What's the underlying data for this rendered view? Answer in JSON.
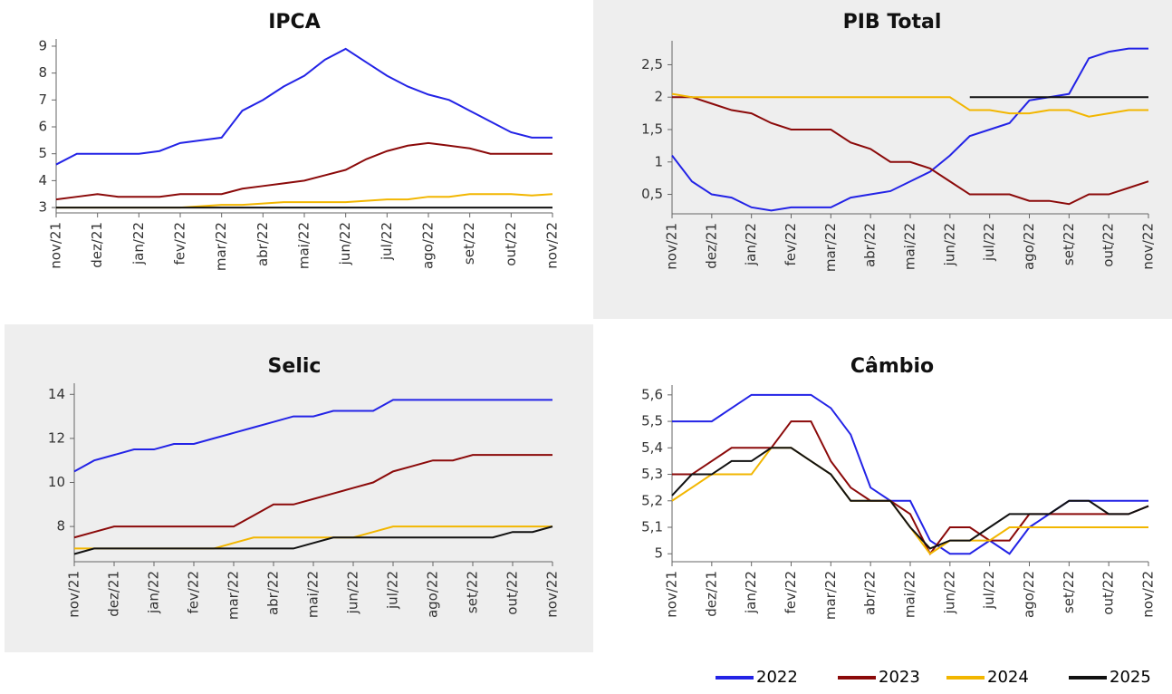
{
  "chart_data": [
    {
      "type": "line",
      "title": "IPCA",
      "x": [
        0,
        0.5,
        1,
        1.5,
        2,
        2.5,
        3,
        3.5,
        4,
        4.5,
        5,
        5.5,
        6,
        6.5,
        7,
        7.5,
        8,
        8.5,
        9,
        9.5,
        10,
        10.5,
        11,
        11.5,
        12
      ],
      "xlim": [
        0,
        12
      ],
      "xticks": [
        {
          "value": 0,
          "label": "nov/21"
        },
        {
          "value": 1,
          "label": "dez/21"
        },
        {
          "value": 2,
          "label": "jan/22"
        },
        {
          "value": 3,
          "label": "fev/22"
        },
        {
          "value": 4,
          "label": "mar/22"
        },
        {
          "value": 5,
          "label": "abr/22"
        },
        {
          "value": 6,
          "label": "mai/22"
        },
        {
          "value": 7,
          "label": "jun/22"
        },
        {
          "value": 8,
          "label": "jul/22"
        },
        {
          "value": 9,
          "label": "ago/22"
        },
        {
          "value": 10,
          "label": "set/22"
        },
        {
          "value": 11,
          "label": "out/22"
        },
        {
          "value": 12,
          "label": "nov/22"
        }
      ],
      "ylim": [
        2.8,
        9.1
      ],
      "yticks": [
        3,
        4,
        5,
        6,
        7,
        8,
        9
      ],
      "series": [
        {
          "name": "2022",
          "color": "#2323e6",
          "values": [
            4.6,
            5.0,
            5.0,
            5.0,
            5.0,
            5.1,
            5.4,
            5.5,
            5.6,
            6.6,
            7.0,
            7.5,
            7.9,
            8.5,
            8.9,
            8.4,
            7.9,
            7.5,
            7.2,
            7.0,
            6.6,
            6.2,
            5.8,
            5.6,
            5.6
          ]
        },
        {
          "name": "2023",
          "color": "#8b0a0a",
          "values": [
            3.3,
            3.4,
            3.5,
            3.4,
            3.4,
            3.4,
            3.5,
            3.5,
            3.5,
            3.7,
            3.8,
            3.9,
            4.0,
            4.2,
            4.4,
            4.8,
            5.1,
            5.3,
            5.4,
            5.3,
            5.2,
            5.0,
            5.0,
            5.0,
            5.0
          ]
        },
        {
          "name": "2024",
          "color": "#f2b600",
          "values": [
            3.0,
            3.0,
            3.0,
            3.0,
            3.0,
            3.0,
            3.0,
            3.05,
            3.1,
            3.1,
            3.15,
            3.2,
            3.2,
            3.2,
            3.2,
            3.25,
            3.3,
            3.3,
            3.4,
            3.4,
            3.5,
            3.5,
            3.5,
            3.45,
            3.5
          ]
        },
        {
          "name": "2025",
          "color": "#111111",
          "values": [
            3.0,
            3.0,
            3.0,
            3.0,
            3.0,
            3.0,
            3.0,
            3.0,
            3.0,
            3.0,
            3.0,
            3.0,
            3.0,
            3.0,
            3.0,
            3.0,
            3.0,
            3.0,
            3.0,
            3.0,
            3.0,
            3.0,
            3.0,
            3.0,
            3.0
          ]
        }
      ]
    },
    {
      "type": "line",
      "title": "PIB Total",
      "x": [
        0,
        0.5,
        1,
        1.5,
        2,
        2.5,
        3,
        3.5,
        4,
        4.5,
        5,
        5.5,
        6,
        6.5,
        7,
        7.5,
        8,
        8.5,
        9,
        9.5,
        10,
        10.5,
        11,
        11.5,
        12
      ],
      "xlim": [
        0,
        12
      ],
      "xticks": [
        {
          "value": 0,
          "label": "nov/21"
        },
        {
          "value": 1,
          "label": "dez/21"
        },
        {
          "value": 2,
          "label": "jan/22"
        },
        {
          "value": 3,
          "label": "fev/22"
        },
        {
          "value": 4,
          "label": "mar/22"
        },
        {
          "value": 5,
          "label": "abr/22"
        },
        {
          "value": 6,
          "label": "mai/22"
        },
        {
          "value": 7,
          "label": "jun/22"
        },
        {
          "value": 8,
          "label": "jul/22"
        },
        {
          "value": 9,
          "label": "ago/22"
        },
        {
          "value": 10,
          "label": "set/22"
        },
        {
          "value": 11,
          "label": "out/22"
        },
        {
          "value": 12,
          "label": "nov/22"
        }
      ],
      "ylim": [
        0.2,
        2.8
      ],
      "yticks": [
        {
          "value": 0.5,
          "label": "0,5"
        },
        1,
        {
          "value": 1.5,
          "label": "1,5"
        },
        2,
        {
          "value": 2.5,
          "label": "2,5"
        }
      ],
      "series": [
        {
          "name": "2022",
          "color": "#2323e6",
          "values": [
            1.1,
            0.7,
            0.5,
            0.45,
            0.3,
            0.25,
            0.3,
            0.3,
            0.3,
            0.45,
            0.5,
            0.55,
            0.7,
            0.85,
            1.1,
            1.4,
            1.5,
            1.6,
            1.95,
            2.0,
            2.05,
            2.6,
            2.7,
            2.75,
            2.75
          ]
        },
        {
          "name": "2023",
          "color": "#8b0a0a",
          "values": [
            2.0,
            2.0,
            1.9,
            1.8,
            1.75,
            1.6,
            1.5,
            1.5,
            1.5,
            1.3,
            1.2,
            1.0,
            1.0,
            0.9,
            0.7,
            0.5,
            0.5,
            0.5,
            0.4,
            0.4,
            0.35,
            0.5,
            0.5,
            0.6,
            0.7
          ]
        },
        {
          "name": "2024",
          "color": "#f2b600",
          "values": [
            2.05,
            2.0,
            2.0,
            2.0,
            2.0,
            2.0,
            2.0,
            2.0,
            2.0,
            2.0,
            2.0,
            2.0,
            2.0,
            2.0,
            2.0,
            1.8,
            1.8,
            1.75,
            1.75,
            1.8,
            1.8,
            1.7,
            1.75,
            1.8,
            1.8
          ]
        },
        {
          "name": "2025",
          "color": "#111111",
          "values": [
            null,
            null,
            null,
            null,
            null,
            null,
            null,
            null,
            null,
            null,
            null,
            null,
            null,
            null,
            null,
            2.0,
            2.0,
            2.0,
            2.0,
            2.0,
            2.0,
            2.0,
            2.0,
            2.0,
            2.0
          ]
        }
      ]
    },
    {
      "type": "line",
      "title": "Selic",
      "x": [
        0,
        0.5,
        1,
        1.5,
        2,
        2.5,
        3,
        3.5,
        4,
        4.5,
        5,
        5.5,
        6,
        6.5,
        7,
        7.5,
        8,
        8.5,
        9,
        9.5,
        10,
        10.5,
        11,
        11.5,
        12
      ],
      "xlim": [
        0,
        12
      ],
      "xticks": [
        {
          "value": 0,
          "label": "nov/21"
        },
        {
          "value": 1,
          "label": "dez/21"
        },
        {
          "value": 2,
          "label": "jan/22"
        },
        {
          "value": 3,
          "label": "fev/22"
        },
        {
          "value": 4,
          "label": "mar/22"
        },
        {
          "value": 5,
          "label": "abr/22"
        },
        {
          "value": 6,
          "label": "mai/22"
        },
        {
          "value": 7,
          "label": "jun/22"
        },
        {
          "value": 8,
          "label": "jul/22"
        },
        {
          "value": 9,
          "label": "ago/22"
        },
        {
          "value": 10,
          "label": "set/22"
        },
        {
          "value": 11,
          "label": "out/22"
        },
        {
          "value": 12,
          "label": "nov/22"
        }
      ],
      "ylim": [
        6.4,
        14.3
      ],
      "yticks": [
        8,
        10,
        12,
        14
      ],
      "series": [
        {
          "name": "2022",
          "color": "#2323e6",
          "values": [
            10.5,
            11.0,
            11.25,
            11.5,
            11.5,
            11.75,
            11.75,
            12.0,
            12.25,
            12.5,
            12.75,
            13.0,
            13.0,
            13.25,
            13.25,
            13.25,
            13.75,
            13.75,
            13.75,
            13.75,
            13.75,
            13.75,
            13.75,
            13.75,
            13.75
          ]
        },
        {
          "name": "2023",
          "color": "#8b0a0a",
          "values": [
            7.5,
            7.75,
            8.0,
            8.0,
            8.0,
            8.0,
            8.0,
            8.0,
            8.0,
            8.5,
            9.0,
            9.0,
            9.25,
            9.5,
            9.75,
            10.0,
            10.5,
            10.75,
            11.0,
            11.0,
            11.25,
            11.25,
            11.25,
            11.25,
            11.25
          ]
        },
        {
          "name": "2024",
          "color": "#f2b600",
          "values": [
            7.0,
            7.0,
            7.0,
            7.0,
            7.0,
            7.0,
            7.0,
            7.0,
            7.25,
            7.5,
            7.5,
            7.5,
            7.5,
            7.5,
            7.5,
            7.75,
            8.0,
            8.0,
            8.0,
            8.0,
            8.0,
            8.0,
            8.0,
            8.0,
            8.0
          ]
        },
        {
          "name": "2025",
          "color": "#111111",
          "values": [
            6.75,
            7.0,
            7.0,
            7.0,
            7.0,
            7.0,
            7.0,
            7.0,
            7.0,
            7.0,
            7.0,
            7.0,
            7.25,
            7.5,
            7.5,
            7.5,
            7.5,
            7.5,
            7.5,
            7.5,
            7.5,
            7.5,
            7.75,
            7.75,
            8.0
          ]
        }
      ]
    },
    {
      "type": "line",
      "title": "Câmbio",
      "x": [
        0,
        0.5,
        1,
        1.5,
        2,
        2.5,
        3,
        3.5,
        4,
        4.5,
        5,
        5.5,
        6,
        6.5,
        7,
        7.5,
        8,
        8.5,
        9,
        9.5,
        10,
        10.5,
        11,
        11.5,
        12
      ],
      "xlim": [
        0,
        12
      ],
      "xticks": [
        {
          "value": 0,
          "label": "nov/21"
        },
        {
          "value": 1,
          "label": "dez/21"
        },
        {
          "value": 2,
          "label": "jan/22"
        },
        {
          "value": 3,
          "label": "fev/22"
        },
        {
          "value": 4,
          "label": "mar/22"
        },
        {
          "value": 5,
          "label": "abr/22"
        },
        {
          "value": 6,
          "label": "mai/22"
        },
        {
          "value": 7,
          "label": "jun/22"
        },
        {
          "value": 8,
          "label": "jul/22"
        },
        {
          "value": 9,
          "label": "ago/22"
        },
        {
          "value": 10,
          "label": "set/22"
        },
        {
          "value": 11,
          "label": "out/22"
        },
        {
          "value": 12,
          "label": "nov/22"
        }
      ],
      "ylim": [
        4.97,
        5.62
      ],
      "yticks": [
        5,
        {
          "value": 5.1,
          "label": "5,1"
        },
        {
          "value": 5.2,
          "label": "5,2"
        },
        {
          "value": 5.3,
          "label": "5,3"
        },
        {
          "value": 5.4,
          "label": "5,4"
        },
        {
          "value": 5.5,
          "label": "5,5"
        },
        {
          "value": 5.6,
          "label": "5,6"
        }
      ],
      "series": [
        {
          "name": "2022",
          "color": "#2323e6",
          "values": [
            5.5,
            5.5,
            5.5,
            5.55,
            5.6,
            5.6,
            5.6,
            5.6,
            5.55,
            5.45,
            5.25,
            5.2,
            5.2,
            5.05,
            5.0,
            5.0,
            5.05,
            5.0,
            5.1,
            5.15,
            5.2,
            5.2,
            5.2,
            5.2,
            5.2
          ]
        },
        {
          "name": "2023",
          "color": "#8b0a0a",
          "values": [
            5.3,
            5.3,
            5.35,
            5.4,
            5.4,
            5.4,
            5.5,
            5.5,
            5.35,
            5.25,
            5.2,
            5.2,
            5.15,
            5.0,
            5.1,
            5.1,
            5.05,
            5.05,
            5.15,
            5.15,
            5.15,
            5.15,
            5.15,
            5.15,
            5.18
          ]
        },
        {
          "name": "2024",
          "color": "#f2b600",
          "values": [
            5.2,
            5.25,
            5.3,
            5.3,
            5.3,
            5.4,
            5.4,
            5.35,
            5.3,
            5.2,
            5.2,
            5.2,
            5.1,
            5.0,
            5.05,
            5.05,
            5.05,
            5.1,
            5.1,
            5.1,
            5.1,
            5.1,
            5.1,
            5.1,
            5.1
          ]
        },
        {
          "name": "2025",
          "color": "#111111",
          "values": [
            5.22,
            5.3,
            5.3,
            5.35,
            5.35,
            5.4,
            5.4,
            5.35,
            5.3,
            5.2,
            5.2,
            5.2,
            5.1,
            5.02,
            5.05,
            5.05,
            5.1,
            5.15,
            5.15,
            5.15,
            5.2,
            5.2,
            5.15,
            5.15,
            5.18
          ]
        }
      ]
    }
  ]
}
